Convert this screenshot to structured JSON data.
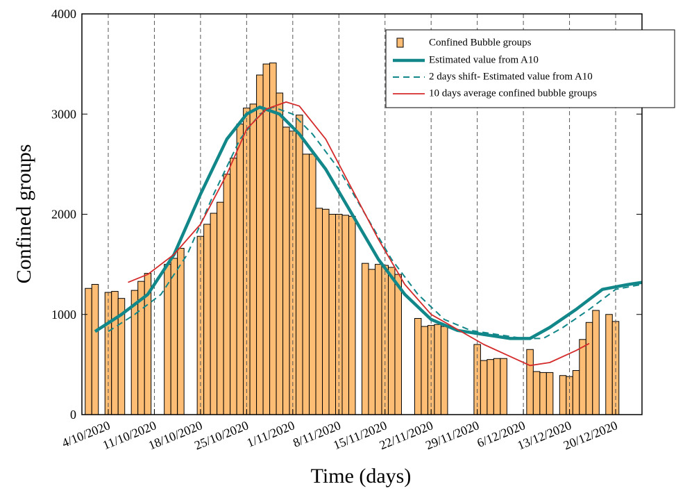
{
  "chart_data": {
    "type": "bar_line",
    "x_label": "Time (days)",
    "y_label": "Confined groups",
    "xlim": [
      "2020-09-30",
      "2020-12-24"
    ],
    "xticks": [
      {
        "value": "2020-10-04",
        "label": "4/10/2020"
      },
      {
        "value": "2020-10-11",
        "label": "11/10/2020"
      },
      {
        "value": "2020-10-18",
        "label": "18/10/2020"
      },
      {
        "value": "2020-10-25",
        "label": "25/10/2020"
      },
      {
        "value": "2020-11-01",
        "label": "1/11/2020"
      },
      {
        "value": "2020-11-08",
        "label": "8/11/2020"
      },
      {
        "value": "2020-11-15",
        "label": "15/11/2020"
      },
      {
        "value": "2020-11-22",
        "label": "22/11/2020"
      },
      {
        "value": "2020-11-29",
        "label": "29/11/2020"
      },
      {
        "value": "2020-12-06",
        "label": "6/12/2020"
      },
      {
        "value": "2020-12-13",
        "label": "13/12/2020"
      },
      {
        "value": "2020-12-20",
        "label": "20/12/2020"
      }
    ],
    "ylim": [
      0,
      4000
    ],
    "yticks": [
      0,
      1000,
      2000,
      3000,
      4000
    ],
    "grid": "x-dashed",
    "legend": "top-right",
    "bars": {
      "name": "Confined Bubble groups",
      "color": "#fdbd74",
      "x": [
        "2020-10-01",
        "2020-10-02",
        "2020-10-04",
        "2020-10-05",
        "2020-10-06",
        "2020-10-08",
        "2020-10-09",
        "2020-10-10",
        "2020-10-13",
        "2020-10-14",
        "2020-10-15",
        "2020-10-18",
        "2020-10-19",
        "2020-10-20",
        "2020-10-21",
        "2020-10-22",
        "2020-10-23",
        "2020-10-24",
        "2020-10-25",
        "2020-10-26",
        "2020-10-27",
        "2020-10-28",
        "2020-10-29",
        "2020-10-30",
        "2020-10-31",
        "2020-11-01",
        "2020-11-02",
        "2020-11-03",
        "2020-11-04",
        "2020-11-05",
        "2020-11-06",
        "2020-11-07",
        "2020-11-08",
        "2020-11-09",
        "2020-11-10",
        "2020-11-12",
        "2020-11-13",
        "2020-11-14",
        "2020-11-15",
        "2020-11-16",
        "2020-11-17",
        "2020-11-20",
        "2020-11-21",
        "2020-11-22",
        "2020-11-23",
        "2020-11-24",
        "2020-11-29",
        "2020-11-30",
        "2020-12-01",
        "2020-12-02",
        "2020-12-03",
        "2020-12-07",
        "2020-12-08",
        "2020-12-09",
        "2020-12-10",
        "2020-12-12",
        "2020-12-13",
        "2020-12-14",
        "2020-12-15",
        "2020-12-16",
        "2020-12-17",
        "2020-12-19",
        "2020-12-20"
      ],
      "values": [
        1260,
        1300,
        1220,
        1230,
        1160,
        1240,
        1330,
        1410,
        1500,
        1560,
        1660,
        1780,
        1900,
        2010,
        2120,
        2400,
        2560,
        2900,
        3060,
        3100,
        3390,
        3500,
        3510,
        3210,
        2870,
        2830,
        2990,
        2600,
        2600,
        2060,
        2050,
        2000,
        2000,
        1990,
        1980,
        1510,
        1450,
        1500,
        1490,
        1470,
        1400,
        960,
        880,
        890,
        900,
        880,
        700,
        540,
        550,
        560,
        560,
        650,
        430,
        420,
        420,
        390,
        380,
        440,
        750,
        920,
        1040,
        1000,
        930
      ]
    },
    "series": [
      {
        "name": "Estimated value from A10",
        "color": "#12878a",
        "style": "thick",
        "x": [
          "2020-10-02",
          "2020-10-06",
          "2020-10-10",
          "2020-10-14",
          "2020-10-18",
          "2020-10-22",
          "2020-10-25",
          "2020-10-27",
          "2020-10-30",
          "2020-11-02",
          "2020-11-06",
          "2020-11-10",
          "2020-11-14",
          "2020-11-18",
          "2020-11-22",
          "2020-11-26",
          "2020-11-30",
          "2020-12-04",
          "2020-12-07",
          "2020-12-10",
          "2020-12-14",
          "2020-12-18",
          "2020-12-22",
          "2020-12-24"
        ],
        "values": [
          830,
          1000,
          1200,
          1600,
          2200,
          2750,
          3000,
          3070,
          3000,
          2800,
          2450,
          2000,
          1550,
          1200,
          950,
          840,
          800,
          760,
          760,
          870,
          1050,
          1250,
          1300,
          1320
        ]
      },
      {
        "name": "2 days shift- Estimated value from A10",
        "color": "#12878a",
        "style": "dashed",
        "x": [
          "2020-10-04",
          "2020-10-08",
          "2020-10-12",
          "2020-10-16",
          "2020-10-20",
          "2020-10-24",
          "2020-10-27",
          "2020-10-29",
          "2020-11-01",
          "2020-11-04",
          "2020-11-08",
          "2020-11-12",
          "2020-11-16",
          "2020-11-20",
          "2020-11-24",
          "2020-11-28",
          "2020-12-02",
          "2020-12-06",
          "2020-12-09",
          "2020-12-12",
          "2020-12-16",
          "2020-12-20",
          "2020-12-24"
        ],
        "values": [
          830,
          1000,
          1200,
          1600,
          2200,
          2750,
          3000,
          3070,
          3000,
          2800,
          2450,
          2000,
          1550,
          1200,
          950,
          840,
          800,
          760,
          760,
          870,
          1050,
          1250,
          1300
        ]
      },
      {
        "name": "10 days average confined bubble groups",
        "color": "#d42a2a",
        "style": "thin",
        "x": [
          "2020-10-07",
          "2020-10-10",
          "2020-10-14",
          "2020-10-18",
          "2020-10-22",
          "2020-10-25",
          "2020-10-28",
          "2020-10-31",
          "2020-11-02",
          "2020-11-06",
          "2020-11-10",
          "2020-11-14",
          "2020-11-18",
          "2020-11-22",
          "2020-11-26",
          "2020-11-30",
          "2020-12-04",
          "2020-12-07",
          "2020-12-10",
          "2020-12-14",
          "2020-12-16"
        ],
        "values": [
          1320,
          1400,
          1600,
          1900,
          2400,
          2850,
          3050,
          3120,
          3080,
          2750,
          2250,
          1750,
          1300,
          1000,
          850,
          700,
          580,
          490,
          520,
          640,
          710
        ]
      }
    ]
  }
}
